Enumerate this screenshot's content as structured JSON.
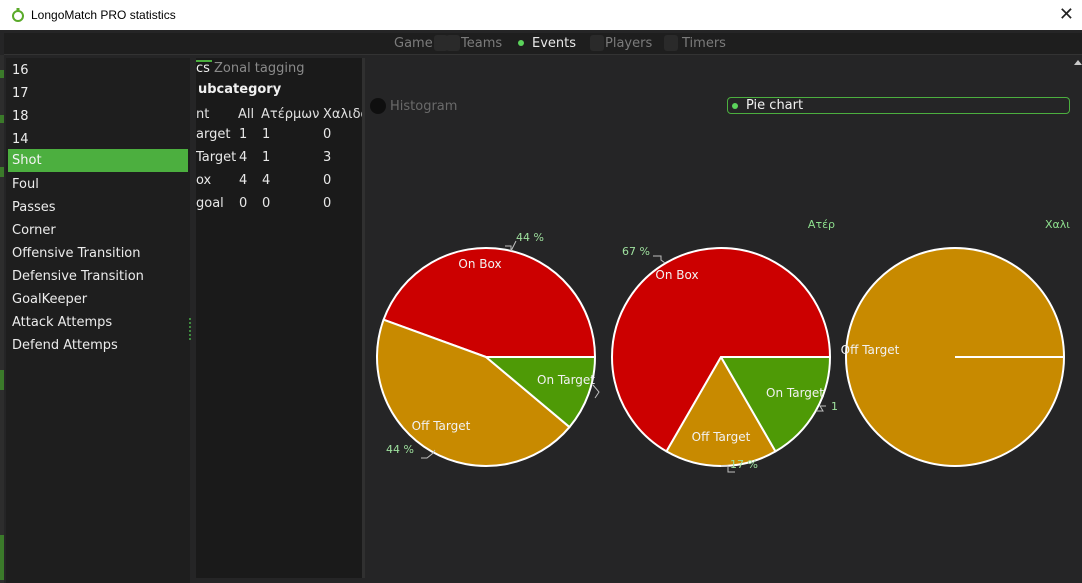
{
  "window": {
    "title": "LongoMatch PRO statistics",
    "close_glyph": "✕",
    "logo_icon": "longomatch-logo-icon"
  },
  "tabs": [
    {
      "label": "Game",
      "active": false
    },
    {
      "label": "Teams",
      "active": false
    },
    {
      "label": "Events",
      "active": true
    },
    {
      "label": "Players",
      "active": false
    },
    {
      "label": "Timers",
      "active": false
    }
  ],
  "sidebar": {
    "items": [
      {
        "label": "16",
        "selected": false
      },
      {
        "label": "17",
        "selected": false
      },
      {
        "label": "18",
        "selected": false
      },
      {
        "label": "14",
        "selected": false
      },
      {
        "label": "Shot",
        "selected": true
      },
      {
        "label": "Foul",
        "selected": false
      },
      {
        "label": "Passes",
        "selected": false
      },
      {
        "label": "Corner",
        "selected": false
      },
      {
        "label": "Offensive Transition",
        "selected": false
      },
      {
        "label": "Defensive Transition",
        "selected": false
      },
      {
        "label": "GoalKeeper",
        "selected": false
      },
      {
        "label": "Attack Attemps",
        "selected": false
      },
      {
        "label": "Defend Attemps",
        "selected": false
      }
    ]
  },
  "middle": {
    "tab_active": "cs",
    "tab_inactive": "Zonal tagging",
    "subcategory": "ubcategory",
    "columns": [
      "nt",
      "All",
      "Ατέρμων",
      "Χαλιδό"
    ],
    "rows": [
      [
        "arget",
        "1",
        "1",
        "0"
      ],
      [
        "Target",
        "4",
        "1",
        "3"
      ],
      [
        "ox",
        "4",
        "4",
        "0"
      ],
      [
        "goal",
        "0",
        "0",
        "0"
      ]
    ]
  },
  "view_mode": {
    "histogram_label": "Histogram",
    "pie_label": "Pie chart",
    "selected": "Pie chart"
  },
  "colors": {
    "on_box": "#cc0000",
    "off_target": "#c88a00",
    "on_target": "#4e9a06",
    "accent": "#4caf3f",
    "series_title": "#8ee08e"
  },
  "chart_data": [
    {
      "type": "pie",
      "title": "",
      "slices": [
        {
          "label": "On Box",
          "value": 4,
          "pct_label": "44 %"
        },
        {
          "label": "Off Target",
          "value": 4,
          "pct_label": "44 %"
        },
        {
          "label": "On Target",
          "value": 1,
          "pct_label": ""
        }
      ]
    },
    {
      "type": "pie",
      "title": "Ατέρ",
      "slices": [
        {
          "label": "On Box",
          "value": 4,
          "pct_label": "67 %"
        },
        {
          "label": "Off Target",
          "value": 1,
          "pct_label": "17 %"
        },
        {
          "label": "On Target",
          "value": 1,
          "pct_label": "1"
        }
      ]
    },
    {
      "type": "pie",
      "title": "Χαλι",
      "slices": [
        {
          "label": "Off Target",
          "value": 3,
          "pct_label": ""
        }
      ]
    }
  ]
}
